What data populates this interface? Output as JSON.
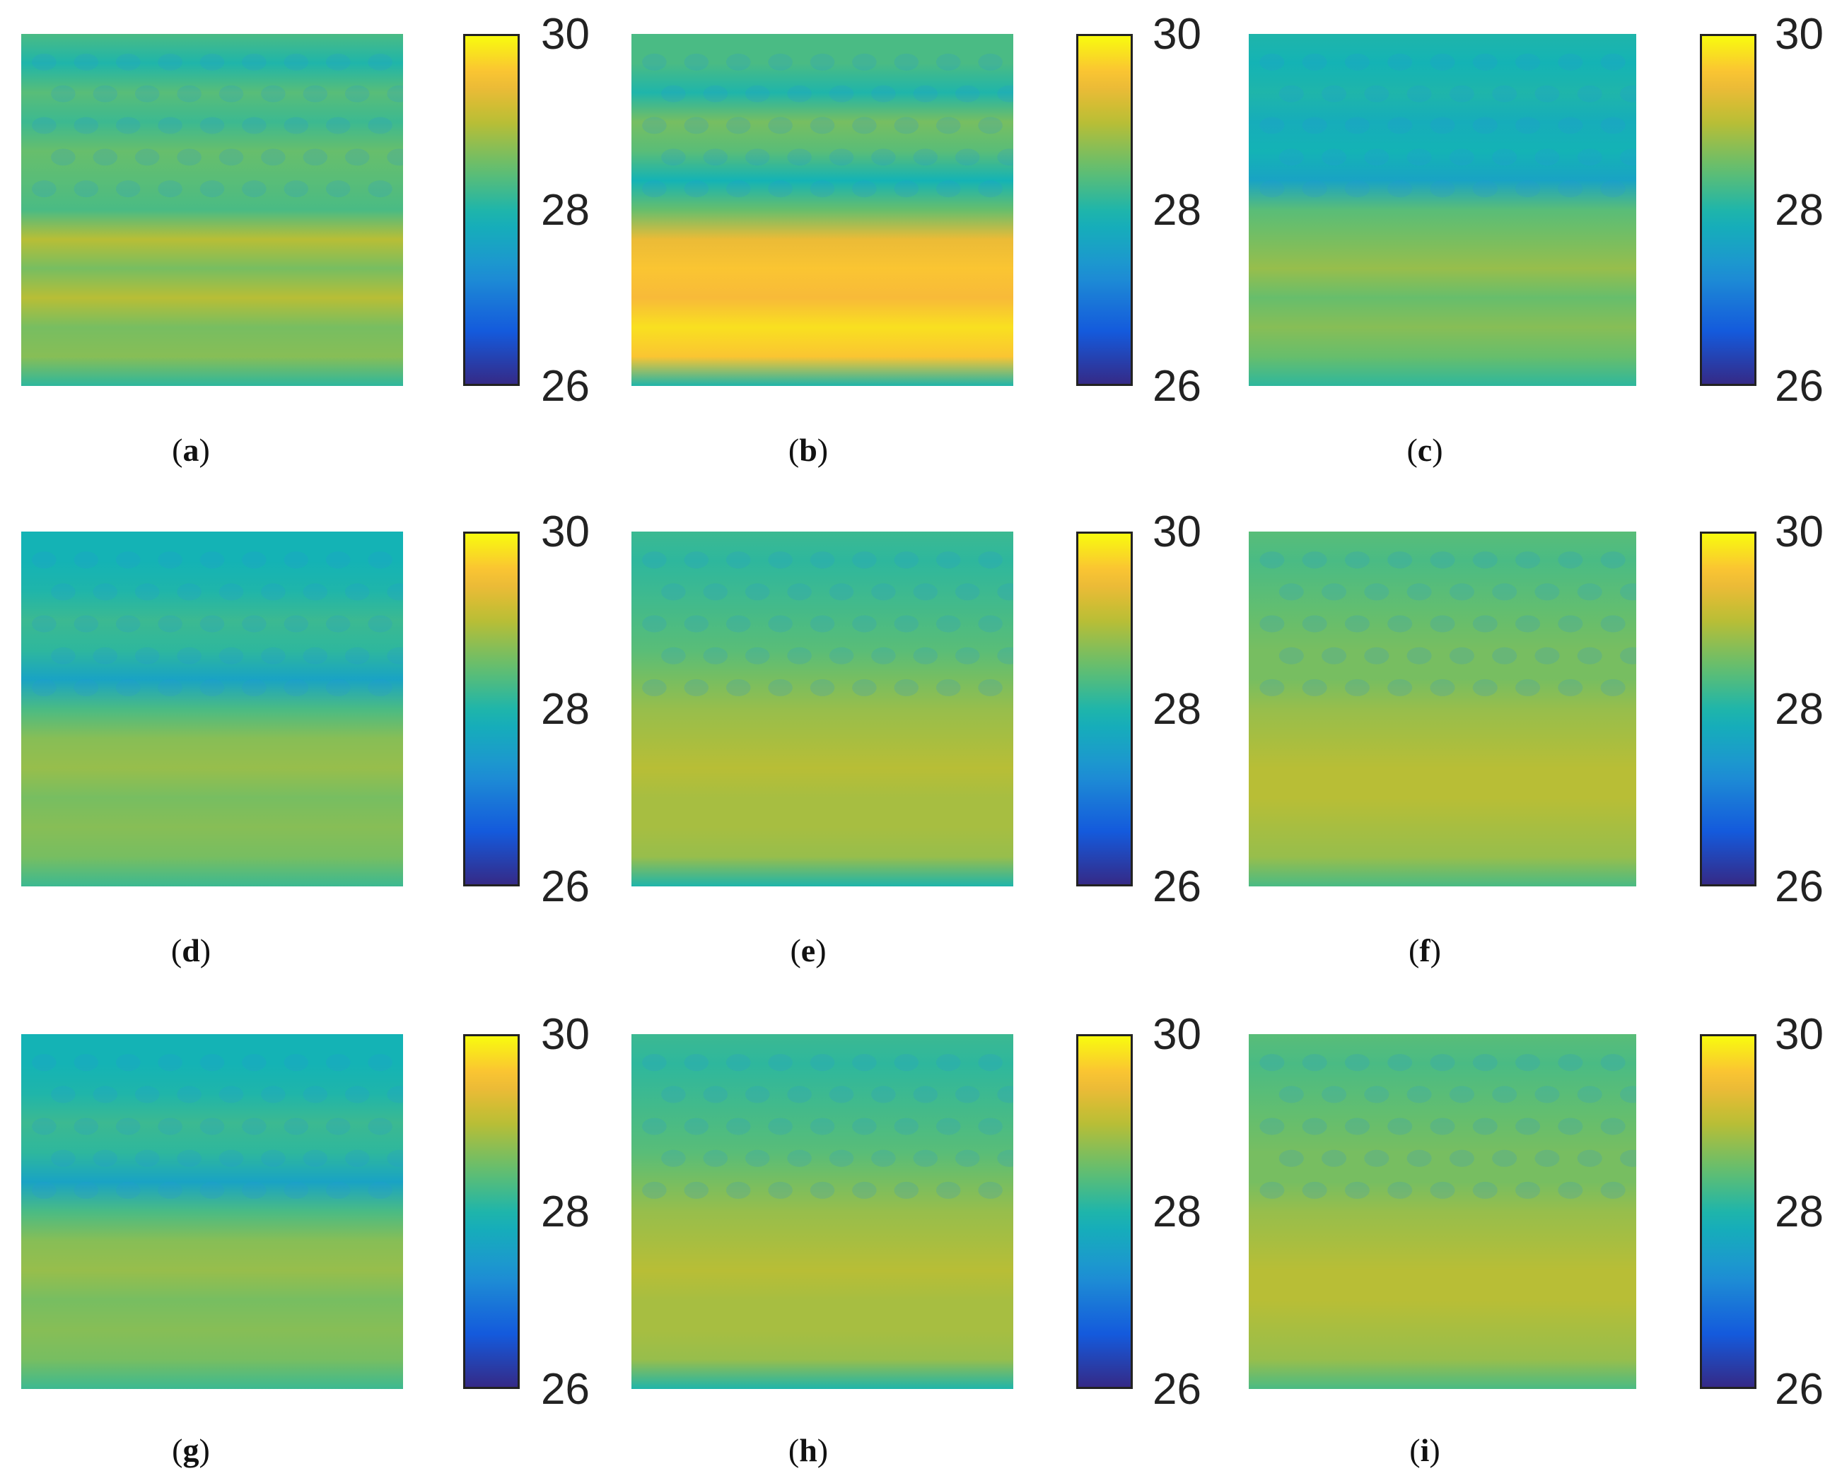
{
  "chart_data": [
    {
      "type": "heatmap",
      "panel": "a",
      "caption": "(a)",
      "colorbar": {
        "min": 26,
        "max": 30,
        "ticks": [
          "30",
          "28",
          "26"
        ]
      },
      "bands": [
        28.3,
        28.0,
        28.4,
        28.2,
        28.5,
        28.4,
        28.3,
        29.0,
        28.6,
        29.0,
        28.6,
        28.7,
        28.1
      ]
    },
    {
      "type": "heatmap",
      "panel": "b",
      "caption": "(b)",
      "colorbar": {
        "min": 26,
        "max": 30,
        "ticks": [
          "30",
          "28",
          "26"
        ]
      },
      "bands": [
        28.3,
        28.3,
        28.0,
        28.6,
        28.4,
        27.9,
        28.5,
        29.4,
        29.6,
        29.5,
        29.8,
        29.6,
        28.0
      ]
    },
    {
      "type": "heatmap",
      "panel": "c",
      "caption": "(c)",
      "colorbar": {
        "min": 26,
        "max": 30,
        "ticks": [
          "30",
          "28",
          "26"
        ]
      },
      "bands": [
        28.0,
        27.9,
        28.0,
        27.8,
        27.9,
        27.6,
        28.4,
        28.6,
        28.8,
        28.5,
        28.7,
        28.5,
        28.1
      ]
    },
    {
      "type": "heatmap",
      "panel": "d",
      "caption": "(d)",
      "colorbar": {
        "min": 26,
        "max": 30,
        "ticks": [
          "30",
          "28",
          "26"
        ]
      },
      "bands": [
        27.9,
        27.9,
        28.0,
        28.2,
        28.1,
        27.6,
        28.3,
        28.7,
        28.8,
        28.6,
        28.7,
        28.6,
        28.2
      ]
    },
    {
      "type": "heatmap",
      "panel": "e",
      "caption": "(e)",
      "colorbar": {
        "min": 26,
        "max": 30,
        "ticks": [
          "30",
          "28",
          "26"
        ]
      },
      "bands": [
        28.2,
        28.1,
        28.2,
        28.3,
        28.4,
        28.6,
        28.8,
        28.9,
        29.0,
        28.9,
        28.9,
        28.8,
        28.0
      ]
    },
    {
      "type": "heatmap",
      "panel": "f",
      "caption": "(f)",
      "colorbar": {
        "min": 26,
        "max": 30,
        "ticks": [
          "30",
          "28",
          "26"
        ]
      },
      "bands": [
        28.4,
        28.3,
        28.4,
        28.5,
        28.6,
        28.6,
        28.8,
        28.9,
        29.0,
        29.0,
        28.9,
        28.8,
        28.3
      ]
    },
    {
      "type": "heatmap",
      "panel": "g",
      "caption": "(g)",
      "colorbar": {
        "min": 26,
        "max": 30,
        "ticks": [
          "30",
          "28",
          "26"
        ]
      },
      "bands": [
        27.9,
        27.9,
        28.0,
        28.2,
        28.1,
        27.6,
        28.3,
        28.7,
        28.8,
        28.6,
        28.7,
        28.6,
        28.2
      ]
    },
    {
      "type": "heatmap",
      "panel": "h",
      "caption": "(h)",
      "colorbar": {
        "min": 26,
        "max": 30,
        "ticks": [
          "30",
          "28",
          "26"
        ]
      },
      "bands": [
        28.2,
        28.1,
        28.2,
        28.3,
        28.4,
        28.6,
        28.8,
        28.9,
        29.0,
        28.9,
        28.9,
        28.8,
        28.0
      ]
    },
    {
      "type": "heatmap",
      "panel": "i",
      "caption": "(i)",
      "colorbar": {
        "min": 26,
        "max": 30,
        "ticks": [
          "30",
          "28",
          "26"
        ]
      },
      "bands": [
        28.4,
        28.3,
        28.4,
        28.5,
        28.6,
        28.6,
        28.8,
        28.9,
        29.0,
        29.0,
        28.9,
        28.8,
        28.3
      ]
    }
  ]
}
